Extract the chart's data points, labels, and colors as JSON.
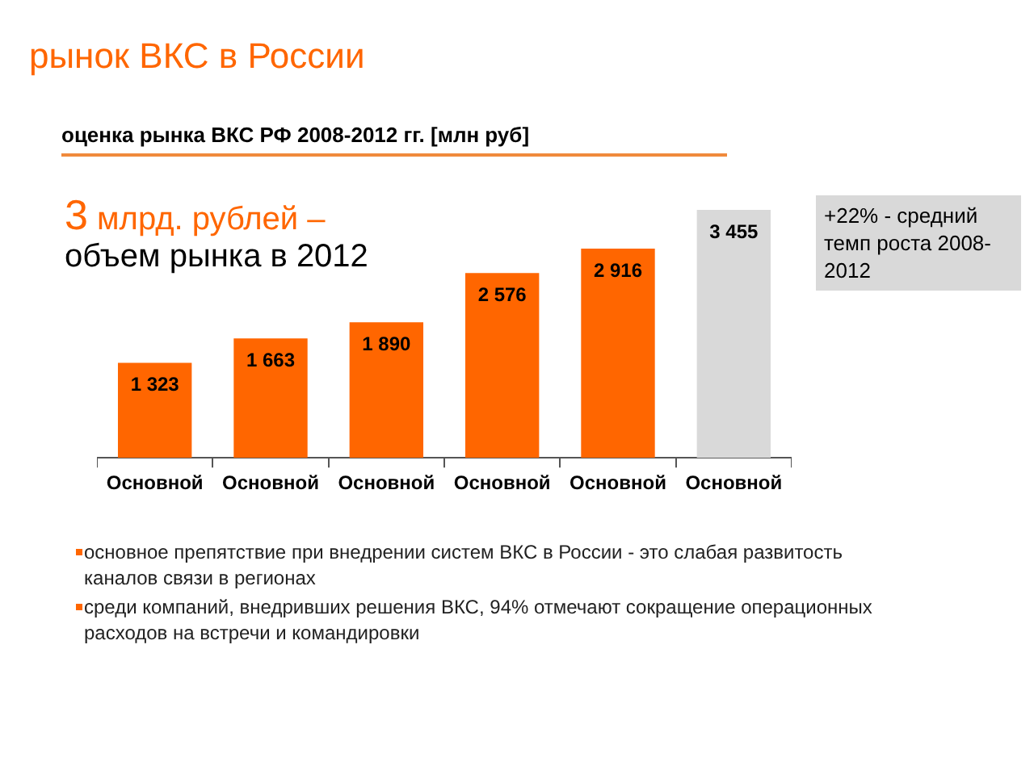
{
  "chart_data": {
    "type": "bar",
    "title": "рынок ВКС в России",
    "subtitle": "оценка рынка ВКС РФ 2008-2012 гг. [млн руб]",
    "categories": [
      "Основной",
      "Основной",
      "Основной",
      "Основной",
      "Основной",
      "Основной"
    ],
    "values": [
      1323,
      1663,
      1890,
      2576,
      2916,
      3455
    ],
    "colors": [
      "#ff6600",
      "#ff6600",
      "#ff6600",
      "#ff6600",
      "#ff6600",
      "#d9d9d9"
    ],
    "value_labels": [
      "1 323",
      "1 663",
      "1 890",
      "2 576",
      "2 916",
      "3 455"
    ],
    "tick_labels": "x",
    "legend": false,
    "grid": false,
    "annotations": [
      "3 млрд. рублей –",
      "объем рынка в 2012",
      "+22% - средний темп роста 2008-2012",
      "основное препятствие при внедрении систем ВКС в России - это слабая развитость каналов связи в регионах",
      "среди компаний, внедривших решения ВКС, 94% отмечают сокращение операционных расходов на встречи и командировки"
    ]
  }
}
